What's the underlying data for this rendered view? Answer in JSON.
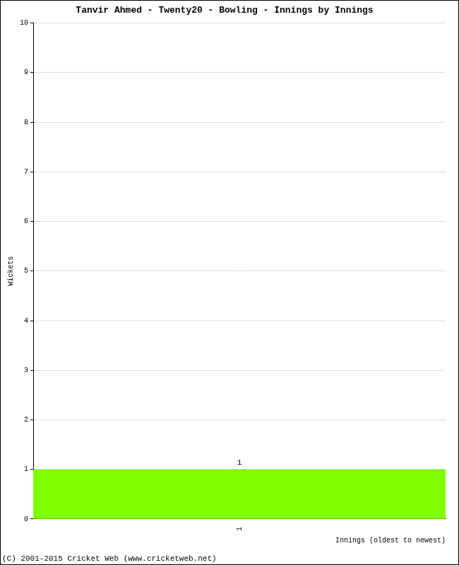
{
  "chart_data": {
    "type": "bar",
    "title": "Tanvir Ahmed - Twenty20 - Bowling - Innings by Innings",
    "x_label": "Innings (oldest to newest)",
    "y_label": "Wickets",
    "categories": [
      "1"
    ],
    "values": [
      1
    ],
    "color": "#80ff00",
    "ylim": [
      0,
      10
    ],
    "yticks": [
      0,
      1,
      2,
      3,
      4,
      5,
      6,
      7,
      8,
      9,
      10
    ],
    "grid": true,
    "data_labels": true,
    "annotations": [
      "(C) 2001-2015 Cricket Web (www.cricketweb.net)"
    ]
  }
}
